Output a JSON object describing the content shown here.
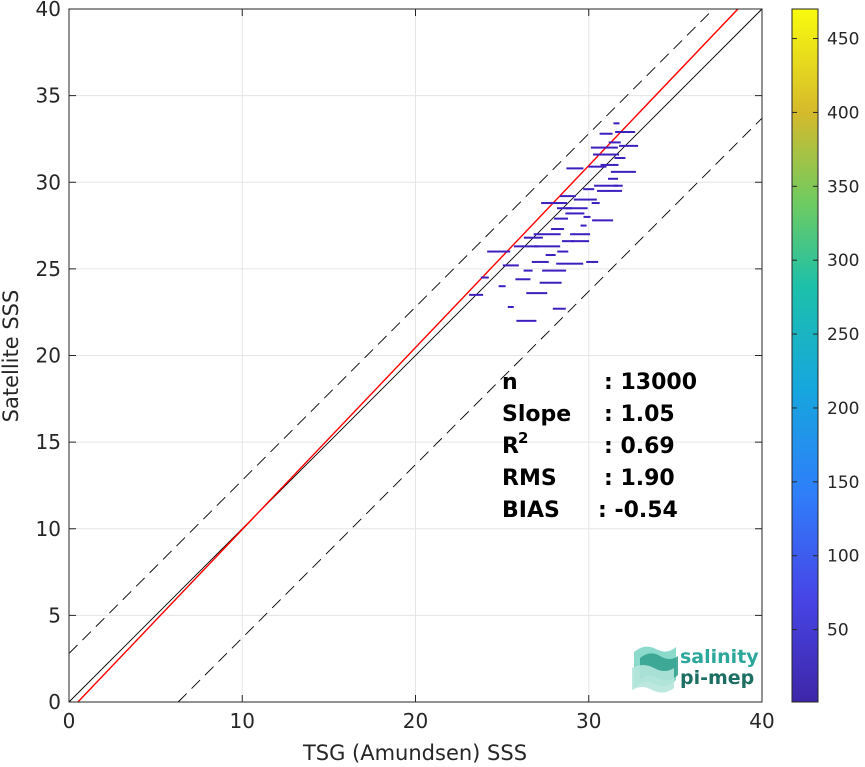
{
  "chart_data": {
    "type": "scatter",
    "subtype": "density-scatter",
    "xlabel": "TSG (Amundsen) SSS",
    "ylabel": "Satellite SSS",
    "xlim": [
      0,
      40
    ],
    "ylim": [
      0,
      40
    ],
    "xticks": [
      "0",
      "10",
      "20",
      "30",
      "40"
    ],
    "yticks": [
      "0",
      "5",
      "10",
      "15",
      "20",
      "25",
      "30",
      "35",
      "40"
    ],
    "grid": true,
    "colorbar": {
      "range": [
        1,
        470
      ],
      "ticks": [
        "50",
        "100",
        "150",
        "200",
        "250",
        "300",
        "350",
        "400",
        "450"
      ],
      "colormap": "parula"
    },
    "reference_lines": {
      "identity": {
        "slope": 1,
        "intercept": 0,
        "color": "#000000"
      },
      "regression": {
        "slope": 1.05,
        "intercept": -0.54,
        "color": "#ff0000"
      },
      "upper_bound": {
        "slope": 1,
        "intercept": 2.8,
        "style": "dashed",
        "color": "#000000"
      },
      "lower_bound": {
        "slope": 1,
        "intercept": -6.3,
        "style": "dashed",
        "color": "#000000"
      }
    },
    "points_color": "#3d1fbf",
    "points": [
      [
        31.6,
        33.4
      ],
      [
        31.0,
        32.8
      ],
      [
        32.1,
        32.9
      ],
      [
        30.9,
        32.0
      ],
      [
        31.5,
        32.3
      ],
      [
        32.3,
        32.1
      ],
      [
        31.0,
        31.6
      ],
      [
        31.8,
        31.4
      ],
      [
        31.2,
        31.0
      ],
      [
        32.0,
        30.6
      ],
      [
        31.4,
        30.2
      ],
      [
        29.2,
        30.8
      ],
      [
        31.0,
        29.8
      ],
      [
        31.7,
        29.8
      ],
      [
        28.8,
        29.2
      ],
      [
        29.8,
        29.0
      ],
      [
        30.4,
        28.8
      ],
      [
        28.6,
        28.5
      ],
      [
        29.3,
        28.5
      ],
      [
        29.9,
        28.0
      ],
      [
        28.4,
        27.9
      ],
      [
        30.8,
        27.8
      ],
      [
        29.7,
        27.5
      ],
      [
        28.2,
        27.3
      ],
      [
        29.5,
        27.0
      ],
      [
        27.6,
        27.0
      ],
      [
        28.8,
        26.6
      ],
      [
        26.8,
        26.8
      ],
      [
        27.6,
        26.3
      ],
      [
        28.5,
        26.0
      ],
      [
        29.5,
        26.6
      ],
      [
        26.4,
        26.3
      ],
      [
        27.8,
        25.8
      ],
      [
        27.2,
        25.4
      ],
      [
        28.0,
        24.9
      ],
      [
        26.5,
        24.9
      ],
      [
        25.5,
        25.2
      ],
      [
        24.8,
        26.0
      ],
      [
        24.0,
        24.5
      ],
      [
        26.2,
        24.4
      ],
      [
        27.8,
        24.2
      ],
      [
        25.0,
        24.0
      ],
      [
        23.5,
        23.5
      ],
      [
        27.0,
        23.6
      ],
      [
        25.5,
        22.8
      ],
      [
        28.3,
        22.7
      ],
      [
        26.4,
        22.0
      ],
      [
        28.9,
        25.3
      ],
      [
        30.2,
        25.4
      ],
      [
        29.2,
        28.2
      ],
      [
        28.0,
        28.8
      ],
      [
        30.0,
        29.6
      ],
      [
        30.5,
        30.9
      ],
      [
        31.2,
        29.5
      ]
    ],
    "stats": [
      {
        "label": "n",
        "sup": "",
        "value": ": 13000"
      },
      {
        "label": "Slope",
        "sup": "",
        "value": ": 1.05"
      },
      {
        "label": "R",
        "sup": "2",
        "value": ": 0.69"
      },
      {
        "label": "RMS",
        "sup": "",
        "value": ": 1.90"
      },
      {
        "label": "BIAS",
        "sup": "",
        "value": ": -0.54"
      }
    ]
  },
  "logo": {
    "line1": "salinity",
    "line2": "pi-mep",
    "colors": {
      "line1": "#2ba79b",
      "line2": "#1d6f63",
      "wave": "#4fbfae"
    }
  }
}
